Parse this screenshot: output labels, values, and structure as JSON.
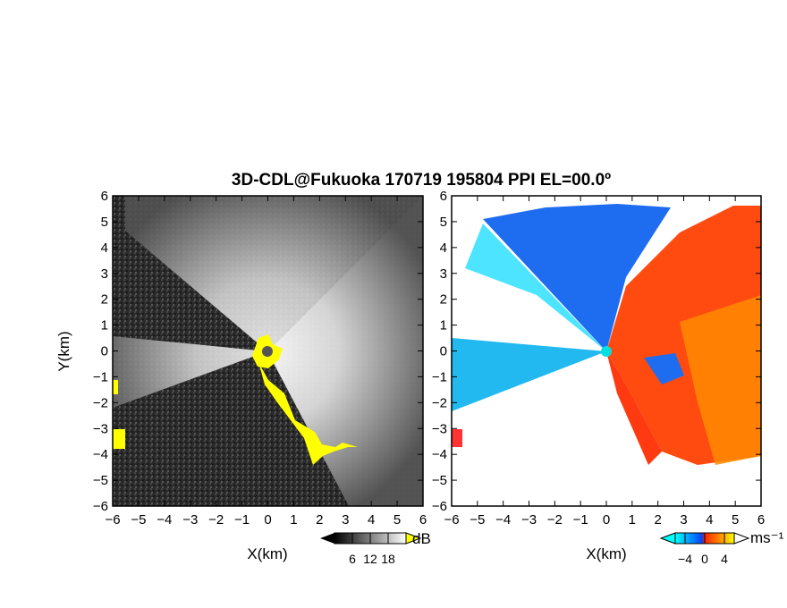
{
  "chart_data": [
    {
      "type": "heatmap",
      "title": "3D-CDL@Fukuoka 170719 195804 PPI EL=00.0º",
      "xlabel": "X(km)",
      "ylabel": "Y(km)",
      "xlim": [
        -6,
        6
      ],
      "ylim": [
        -6,
        6
      ],
      "xticks": [
        "−6",
        "−5",
        "−4",
        "−3",
        "−2",
        "−1",
        "0",
        "1",
        "2",
        "3",
        "4",
        "5",
        "6"
      ],
      "yticks": [
        "6",
        "5",
        "4",
        "3",
        "2",
        "1",
        "0",
        "−1",
        "−2",
        "−3",
        "−4",
        "−5",
        "−6"
      ],
      "colorbar": {
        "unit": "dB",
        "ticks": [
          "6",
          "12",
          "18"
        ],
        "tick_values": [
          6,
          12,
          18
        ],
        "range": [
          0,
          24
        ]
      },
      "colormap": [
        "#000000",
        "#ffffff"
      ],
      "overlay_color": "#ffff00"
    },
    {
      "type": "heatmap",
      "xlabel": "X(km)",
      "xlim": [
        -6,
        6
      ],
      "ylim": [
        -6,
        6
      ],
      "xticks": [
        "−6",
        "−5",
        "−4",
        "−3",
        "−2",
        "−1",
        "0",
        "1",
        "2",
        "3",
        "4",
        "5",
        "6"
      ],
      "yticks": [
        "6",
        "5",
        "4",
        "3",
        "2",
        "1",
        "0",
        "−1",
        "−2",
        "−3",
        "−4",
        "−5",
        "−6"
      ],
      "colorbar": {
        "unit": "ms⁻¹",
        "ticks": [
          "−4",
          "0",
          "4"
        ],
        "tick_values": [
          -4,
          0,
          4
        ],
        "range": [
          -6,
          6
        ]
      },
      "colormap": [
        "#00ffff",
        "#0044ff",
        "#ff2200",
        "#ff8800",
        "#ffff00"
      ]
    }
  ]
}
